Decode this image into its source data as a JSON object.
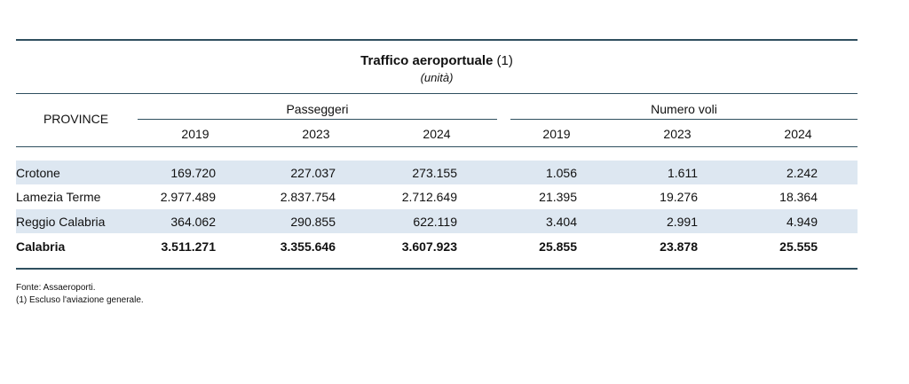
{
  "header": {
    "title": "Traffico aeroportuale",
    "title_note": "(1)",
    "subtitle": "(unità)"
  },
  "table": {
    "row_header": "PROVINCE",
    "groups": [
      {
        "label": "Passeggeri",
        "years": [
          "2019",
          "2023",
          "2024"
        ]
      },
      {
        "label": "Numero voli",
        "years": [
          "2019",
          "2023",
          "2024"
        ]
      }
    ],
    "rows": [
      [
        "Crotone",
        "169.720",
        "227.037",
        "273.155",
        "1.056",
        "1.611",
        "2.242"
      ],
      [
        "Lamezia Terme",
        "2.977.489",
        "2.837.754",
        "2.712.649",
        "21.395",
        "19.276",
        "18.364"
      ],
      [
        "Reggio Calabria",
        "364.062",
        "290.855",
        "622.119",
        "3.404",
        "2.991",
        "4.949"
      ],
      [
        "Calabria",
        "3.511.271",
        "3.355.646",
        "3.607.923",
        "25.855",
        "23.878",
        "25.555"
      ]
    ]
  },
  "notes": [
    "Fonte: Assaeroporti.",
    "(1) Escluso l'aviazione generale."
  ]
}
